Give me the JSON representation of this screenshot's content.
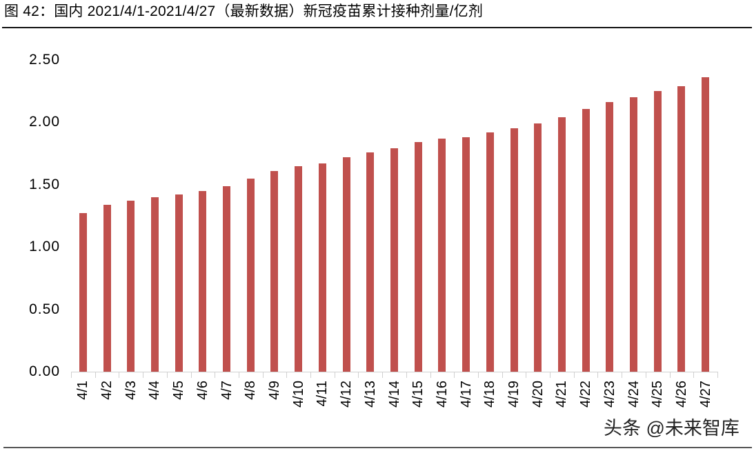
{
  "header": {
    "title": "图 42：国内 2021/4/1-2021/4/27（最新数据）新冠疫苗累计接种剂量/亿剂"
  },
  "watermark": "头条 @未来智库",
  "colors": {
    "bar": "#C0504D",
    "axis": "#D0D0D0",
    "rule": "#111111"
  },
  "chart_data": {
    "type": "bar",
    "title": "国内 2021/4/1-2021/4/27（最新数据）新冠疫苗累计接种剂量/亿剂",
    "xlabel": "",
    "ylabel": "亿剂",
    "ylim": [
      0,
      2.5
    ],
    "yticks": [
      "0.00",
      "0.50",
      "1.00",
      "1.50",
      "2.00",
      "2.50"
    ],
    "grid": false,
    "legend": null,
    "categories": [
      "4/1",
      "4/2",
      "4/3",
      "4/4",
      "4/5",
      "4/6",
      "4/7",
      "4/8",
      "4/9",
      "4/10",
      "4/11",
      "4/12",
      "4/13",
      "4/14",
      "4/15",
      "4/16",
      "4/17",
      "4/18",
      "4/19",
      "4/20",
      "4/21",
      "4/22",
      "4/23",
      "4/24",
      "4/25",
      "4/26",
      "4/27"
    ],
    "series": [
      {
        "name": "新冠疫苗累计接种剂量（亿剂）",
        "color": "#C0504D",
        "values": [
          1.27,
          1.34,
          1.37,
          1.4,
          1.42,
          1.45,
          1.49,
          1.55,
          1.61,
          1.65,
          1.67,
          1.72,
          1.76,
          1.79,
          1.84,
          1.87,
          1.88,
          1.92,
          1.95,
          1.99,
          2.04,
          2.11,
          2.16,
          2.2,
          2.25,
          2.29,
          2.36
        ]
      }
    ]
  }
}
